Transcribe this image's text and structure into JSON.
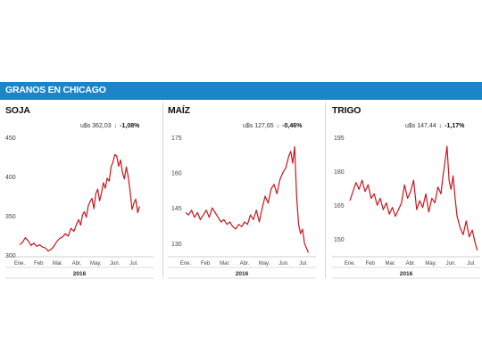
{
  "header": {
    "title": "GRANOS EN CHICAGO"
  },
  "chart_data": [
    {
      "type": "line",
      "title": "SOJA",
      "quote": "u$s 362,03",
      "change": "-1,08%",
      "year": "2016",
      "categories": [
        "Ene.",
        "Feb",
        "Mar.",
        "Abr.",
        "May.",
        "Jun.",
        "Jul."
      ],
      "ylim": [
        300,
        450
      ],
      "yticks": [
        300,
        350,
        400,
        450
      ],
      "grid": false,
      "color": "#c8161d",
      "series": [
        {
          "x": [
            0,
            0.15,
            0.3,
            0.45,
            0.6,
            0.75,
            0.9,
            1.05,
            1.2,
            1.35,
            1.5,
            1.65,
            1.8,
            1.95,
            2.1,
            2.25,
            2.4,
            2.55,
            2.7,
            2.85,
            3.0,
            3.1,
            3.2,
            3.3,
            3.4,
            3.5,
            3.6,
            3.7,
            3.8,
            3.9,
            4.0,
            4.1,
            4.2,
            4.3,
            4.4,
            4.5,
            4.6,
            4.7,
            4.8,
            4.9,
            5.0,
            5.1,
            5.2,
            5.3,
            5.4,
            5.5,
            5.6,
            5.7,
            5.8,
            5.9,
            6.0,
            6.1,
            6.2,
            6.3
          ],
          "values": [
            313,
            316,
            322,
            318,
            312,
            315,
            311,
            313,
            310,
            309,
            305,
            307,
            311,
            317,
            321,
            323,
            327,
            324,
            334,
            330,
            340,
            345,
            338,
            351,
            355,
            348,
            362,
            368,
            372,
            359,
            378,
            384,
            369,
            379,
            392,
            385,
            398,
            394,
            412,
            418,
            428,
            426,
            413,
            421,
            405,
            397,
            412,
            400,
            382,
            358,
            366,
            371,
            354,
            362
          ]
        }
      ]
    },
    {
      "type": "line",
      "title": "MAÍZ",
      "quote": "u$s 127,65",
      "change": "-0,46%",
      "year": "2016",
      "categories": [
        "Ene.",
        "Feb",
        "Mar.",
        "Abr.",
        "May.",
        "Jun.",
        "Jul."
      ],
      "ylim": [
        125,
        175
      ],
      "yticks": [
        130,
        145,
        160,
        175
      ],
      "grid": false,
      "color": "#c8161d",
      "series": [
        {
          "x": [
            0,
            0.15,
            0.3,
            0.45,
            0.6,
            0.75,
            0.9,
            1.05,
            1.2,
            1.35,
            1.5,
            1.65,
            1.8,
            1.95,
            2.1,
            2.25,
            2.4,
            2.55,
            2.7,
            2.85,
            3.0,
            3.15,
            3.3,
            3.45,
            3.6,
            3.75,
            3.9,
            4.05,
            4.2,
            4.35,
            4.5,
            4.65,
            4.8,
            4.95,
            5.1,
            5.25,
            5.35,
            5.45,
            5.55,
            5.65,
            5.75,
            5.85,
            5.95,
            6.05,
            6.15,
            6.25
          ],
          "values": [
            143,
            142,
            144,
            141,
            143,
            140,
            142,
            144,
            141,
            145,
            143,
            141,
            139,
            140,
            138,
            139,
            137,
            136,
            138,
            137,
            139,
            138,
            142,
            140,
            144,
            139,
            145,
            150,
            147,
            153,
            155,
            151,
            157,
            160,
            162,
            167,
            169,
            164,
            171,
            150,
            138,
            134,
            136,
            130,
            128,
            126
          ]
        }
      ]
    },
    {
      "type": "line",
      "title": "TRIGO",
      "quote": "u$s 147,44",
      "change": "-1,17%",
      "year": "2016",
      "categories": [
        "Ene.",
        "Feb",
        "Mar.",
        "Abr.",
        "May.",
        "Jun.",
        "Jul."
      ],
      "ylim": [
        143,
        195
      ],
      "yticks": [
        150,
        165,
        180,
        195
      ],
      "grid": false,
      "color": "#c8161d",
      "series": [
        {
          "x": [
            0,
            0.15,
            0.3,
            0.45,
            0.6,
            0.75,
            0.9,
            1.05,
            1.2,
            1.35,
            1.5,
            1.65,
            1.8,
            1.95,
            2.1,
            2.25,
            2.4,
            2.55,
            2.7,
            2.85,
            3.0,
            3.15,
            3.3,
            3.45,
            3.6,
            3.75,
            3.9,
            4.05,
            4.2,
            4.35,
            4.5,
            4.6,
            4.7,
            4.8,
            4.9,
            5.0,
            5.1,
            5.2,
            5.3,
            5.45,
            5.6,
            5.75,
            5.9,
            6.05,
            6.2,
            6.3
          ],
          "values": [
            167,
            171,
            175,
            172,
            176,
            171,
            174,
            168,
            170,
            165,
            168,
            163,
            166,
            161,
            164,
            160,
            163,
            166,
            174,
            168,
            171,
            176,
            163,
            167,
            164,
            170,
            162,
            168,
            166,
            173,
            170,
            178,
            184,
            191,
            176,
            172,
            178,
            168,
            160,
            155,
            152,
            158,
            151,
            154,
            148,
            145
          ]
        }
      ]
    }
  ]
}
